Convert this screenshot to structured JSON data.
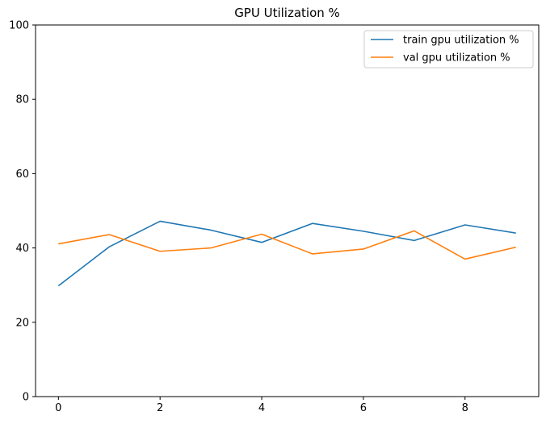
{
  "chart_data": {
    "type": "line",
    "title": "GPU Utilization %",
    "xlabel": "",
    "ylabel": "",
    "xlim": [
      -0.45,
      9.45
    ],
    "ylim": [
      0,
      100
    ],
    "xticks": [
      0,
      2,
      4,
      6,
      8
    ],
    "yticks": [
      0,
      20,
      40,
      60,
      80,
      100
    ],
    "grid": false,
    "legend_position": "top-right",
    "x": [
      0,
      1,
      2,
      3,
      4,
      5,
      6,
      7,
      8,
      9
    ],
    "series": [
      {
        "name": "train gpu utilization %",
        "color": "#1f77b4",
        "values": [
          29.8,
          40.3,
          47.2,
          44.8,
          41.5,
          46.6,
          44.5,
          42.0,
          46.2,
          44.0
        ]
      },
      {
        "name": "val gpu utilization %",
        "color": "#ff7f0e",
        "values": [
          41.1,
          43.6,
          39.1,
          40.0,
          43.7,
          38.4,
          39.7,
          44.6,
          37.0,
          40.2
        ]
      }
    ]
  }
}
